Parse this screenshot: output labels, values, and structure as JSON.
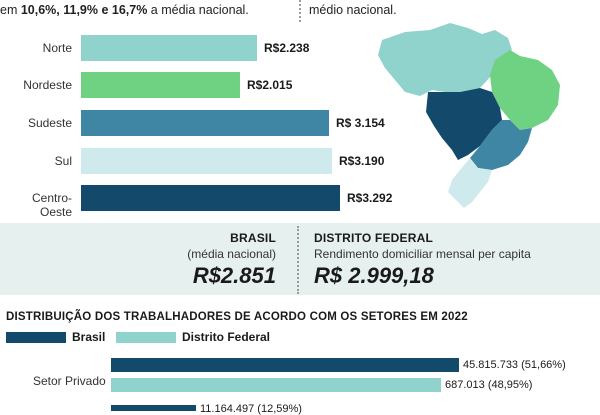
{
  "header": {
    "left_prefix": "em ",
    "left_bold": "10,6%, 11,9% e 16,7%",
    "left_suffix": " a média nacional.",
    "right_text": "médio nacional."
  },
  "colors": {
    "norte": "#8fd3cc",
    "nordeste": "#6fd283",
    "sudeste": "#3f86a4",
    "sul": "#cfeaec",
    "centro_oeste": "#134a6b",
    "brasil": "#134a6b",
    "df": "#8fd3cc",
    "box_bg": "#e6f0ee"
  },
  "icons": {
    "map": "brazil-regions-map-icon"
  },
  "chart_data": [
    {
      "type": "bar",
      "orientation": "horizontal",
      "categories": [
        "Norte",
        "Nordeste",
        "Sudeste",
        "Sul",
        "Centro-Oeste"
      ],
      "values": [
        2238,
        2015,
        3154,
        3190,
        3292
      ],
      "labels": [
        "R$2.238",
        "R$2.015",
        "R$ 3.154",
        "R$3.190",
        "R$3.292"
      ],
      "colors": [
        "#8fd3cc",
        "#6fd283",
        "#3f86a4",
        "#cfeaec",
        "#134a6b"
      ]
    },
    {
      "type": "bar",
      "orientation": "horizontal",
      "title": "DISTRIBUIÇÃO DOS TRABALHADORES DE ACORDO COM OS SETORES EM 2022",
      "categories": [
        "Setor Privado"
      ],
      "series": [
        {
          "name": "Brasil",
          "values": [
            51.66
          ],
          "labels": [
            "45.815.733 (51,66%)"
          ]
        },
        {
          "name": "Distrito Federal",
          "values": [
            48.95
          ],
          "labels": [
            "687.013 (48,95%)"
          ]
        }
      ],
      "partial_row": {
        "label": "11.164.497 (12,59%)",
        "value": 12.59
      }
    }
  ],
  "info": {
    "brasil_title": "BRASIL",
    "brasil_sub": "(média nacional)",
    "brasil_value": "R$2.851",
    "df_title": "DISTRITO FEDERAL",
    "df_sub": "Rendimento domiciliar mensal per capita",
    "df_value": "R$ 2.999,18"
  }
}
